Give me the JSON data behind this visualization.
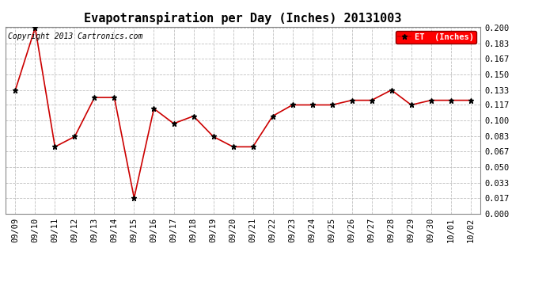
{
  "title": "Evapotranspiration per Day (Inches) 20131003",
  "copyright_text": "Copyright 2013 Cartronics.com",
  "legend_label": "ET  (Inches)",
  "legend_bg": "#ff0000",
  "legend_text_color": "#ffffff",
  "dates": [
    "09/09",
    "09/10",
    "09/11",
    "09/12",
    "09/13",
    "09/14",
    "09/15",
    "09/16",
    "09/17",
    "09/18",
    "09/19",
    "09/20",
    "09/21",
    "09/22",
    "09/23",
    "09/24",
    "09/25",
    "09/26",
    "09/27",
    "09/28",
    "09/29",
    "09/30",
    "10/01",
    "10/02"
  ],
  "values": [
    0.133,
    0.2,
    0.072,
    0.083,
    0.125,
    0.125,
    0.017,
    0.113,
    0.097,
    0.105,
    0.083,
    0.072,
    0.072,
    0.105,
    0.117,
    0.117,
    0.117,
    0.122,
    0.122,
    0.133,
    0.117,
    0.122,
    0.122,
    0.122
  ],
  "line_color": "#cc0000",
  "marker_color": "#000000",
  "bg_color": "#ffffff",
  "grid_color": "#c0c0c0",
  "ylim": [
    0.0,
    0.2
  ],
  "yticks": [
    0.0,
    0.017,
    0.033,
    0.05,
    0.067,
    0.083,
    0.1,
    0.117,
    0.133,
    0.15,
    0.167,
    0.183,
    0.2
  ],
  "title_fontsize": 11,
  "tick_fontsize": 7.5,
  "copyright_fontsize": 7
}
